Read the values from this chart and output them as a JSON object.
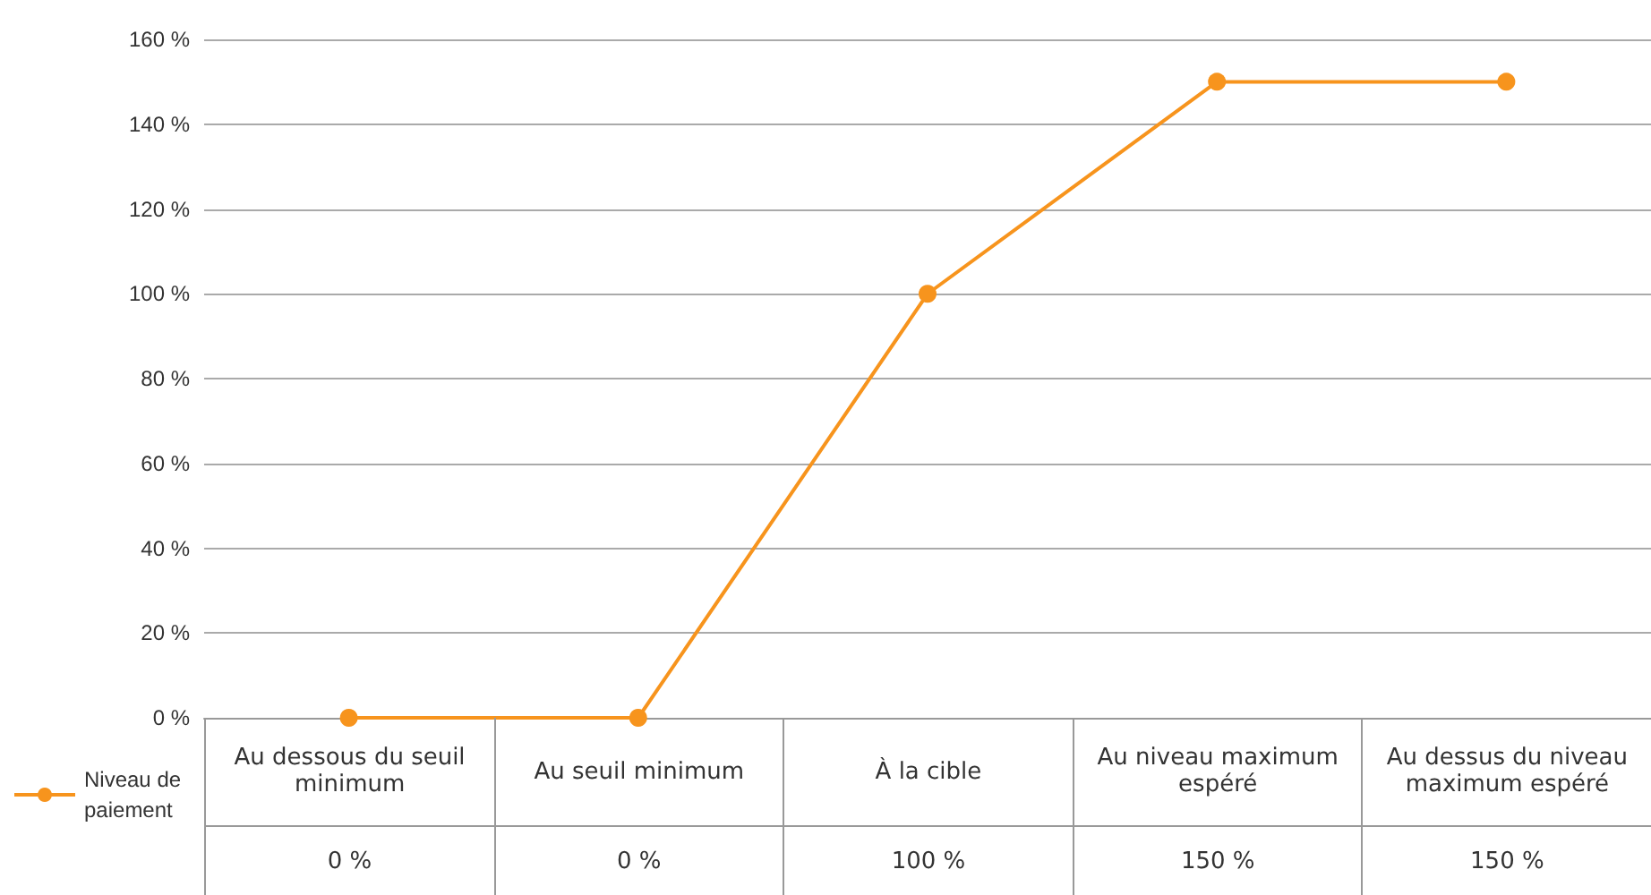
{
  "chart_data": {
    "type": "line",
    "categories": [
      "Au dessous du seuil minimum",
      "Au seuil minimum",
      "À la cible",
      "Au niveau maximum espéré",
      "Au dessus du niveau maximum espéré"
    ],
    "series": [
      {
        "name": "Niveau de paiement",
        "color": "#f7941d",
        "values": [
          0,
          0,
          100,
          150,
          150
        ],
        "value_labels": [
          "0 %",
          "0 %",
          "100 %",
          "150 %",
          "150 %"
        ]
      }
    ],
    "ylim": [
      0,
      160
    ],
    "yticks": [
      {
        "value": 0,
        "label": "0 %"
      },
      {
        "value": 20,
        "label": "20 %"
      },
      {
        "value": 40,
        "label": "40 %"
      },
      {
        "value": 60,
        "label": "60 %"
      },
      {
        "value": 80,
        "label": "80 %"
      },
      {
        "value": 100,
        "label": "100 %"
      },
      {
        "value": 120,
        "label": "120 %"
      },
      {
        "value": 140,
        "label": "140 %"
      },
      {
        "value": 160,
        "label": "160 %"
      }
    ],
    "grid": "y",
    "legend": "bottom left",
    "marker": "circle",
    "line_style": "solid"
  }
}
